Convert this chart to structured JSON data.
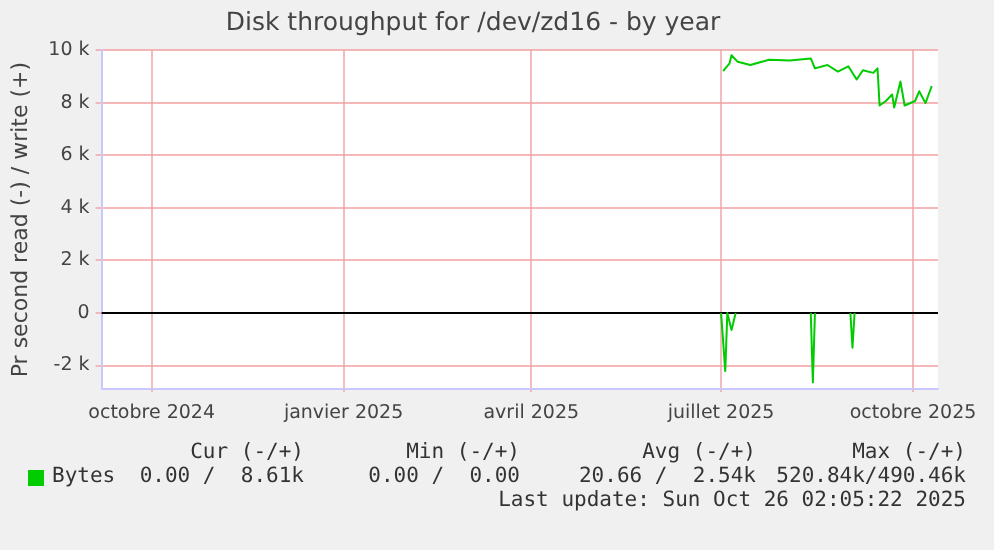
{
  "chart_data": {
    "type": "line",
    "title": "Disk throughput for /dev/zd16 - by year",
    "ylabel": "Pr second read (-) / write (+)",
    "xlim": [
      "2024-09-07",
      "2025-10-13"
    ],
    "xticks": [
      {
        "value": "2024-10-01",
        "label": "octobre 2024"
      },
      {
        "value": "2025-01-01",
        "label": "janvier 2025"
      },
      {
        "value": "2025-04-01",
        "label": "avril 2025"
      },
      {
        "value": "2025-07-01",
        "label": "juillet 2025"
      },
      {
        "value": "2025-10-01",
        "label": "octobre 2025"
      }
    ],
    "ylim": [
      -2900,
      10000
    ],
    "yticks": [
      {
        "value": -2000,
        "label": "-2 k"
      },
      0,
      {
        "value": 2000,
        "label": "2 k"
      },
      {
        "value": 4000,
        "label": "4 k"
      },
      {
        "value": 6000,
        "label": "6 k"
      },
      {
        "value": 8000,
        "label": "8 k"
      },
      {
        "value": 10000,
        "label": "10 k"
      }
    ],
    "grid": true,
    "legend": "bottom left",
    "marker": "none",
    "line_style": "solid",
    "ref_lines": [
      {
        "axis": "y",
        "value": 0,
        "color": "#000000"
      }
    ],
    "series": [
      {
        "name": "Bytes",
        "color": "#00cc00",
        "x": [
          "2025-07-02",
          "2025-07-03",
          "2025-07-05",
          "2025-07-06",
          "2025-07-09",
          "2025-07-15",
          "2025-07-24",
          "2025-08-03",
          "2025-08-13",
          "2025-08-15",
          "2025-08-21",
          "2025-08-26",
          "2025-08-31",
          "2025-09-04",
          "2025-09-07",
          "2025-09-12",
          "2025-09-14",
          "2025-09-15",
          "2025-09-18",
          "2025-09-21",
          "2025-09-22",
          "2025-09-25",
          "2025-09-27",
          "2025-10-02",
          "2025-10-04",
          "2025-10-07",
          "2025-10-10"
        ],
        "values": [
          9200,
          9300,
          9480,
          9800,
          9550,
          9430,
          9630,
          9600,
          9680,
          9300,
          9430,
          9180,
          9380,
          8880,
          9230,
          9130,
          9300,
          7890,
          8060,
          8310,
          7810,
          8800,
          7890,
          8060,
          8430,
          7980,
          8630
        ]
      },
      {
        "color": "#00cc00",
        "x": [
          "2025-07-01",
          "2025-07-03",
          "2025-07-04",
          "2025-07-06",
          "2025-07-08",
          "2025-07-09",
          "2025-08-13",
          "2025-08-14",
          "2025-08-15",
          "2025-08-20",
          "2025-09-01",
          "2025-09-02",
          "2025-09-03"
        ],
        "values": [
          0,
          -2210,
          0,
          -650,
          0,
          null,
          0,
          -2640,
          0,
          null,
          0,
          -1320,
          0
        ]
      }
    ],
    "annotations": [
      "Cur (-/+)",
      "Min (-/+)",
      "Avg (-/+)",
      "Max (-/+)",
      "0.00 /  8.61k",
      "0.00 /  0.00",
      "20.66 /  2.54k",
      "520.84k/490.46k",
      "Last update: Sun Oct 26 02:05:22 2025"
    ]
  }
}
